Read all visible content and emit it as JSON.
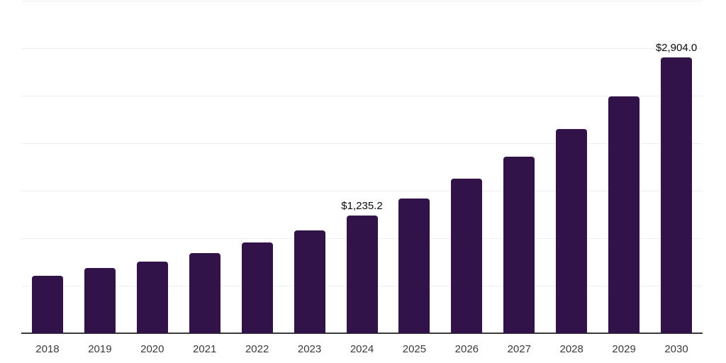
{
  "chart_data": {
    "type": "bar",
    "title": "",
    "xlabel": "",
    "ylabel": "",
    "categories": [
      "2018",
      "2019",
      "2020",
      "2021",
      "2022",
      "2023",
      "2024",
      "2025",
      "2026",
      "2027",
      "2028",
      "2029",
      "2030"
    ],
    "values": [
      605,
      690,
      755,
      845,
      955,
      1080,
      1235.2,
      1420,
      1630,
      1860,
      2150,
      2495,
      2904.0
    ],
    "value_labels": {
      "2024": "$1,235.2",
      "2030": "$2,904.0"
    },
    "ylim": [
      0,
      3500
    ],
    "gridline_step": 500,
    "grid": true,
    "legend": "none",
    "y_tick_labels_visible": false,
    "colors": {
      "bar": "#321349",
      "axis_line": "#3a3a3a",
      "gridline": "#f0f0f0",
      "tick_label": "#3a3a3a",
      "value_label": "#0a0a0a",
      "background": "#ffffff"
    }
  }
}
